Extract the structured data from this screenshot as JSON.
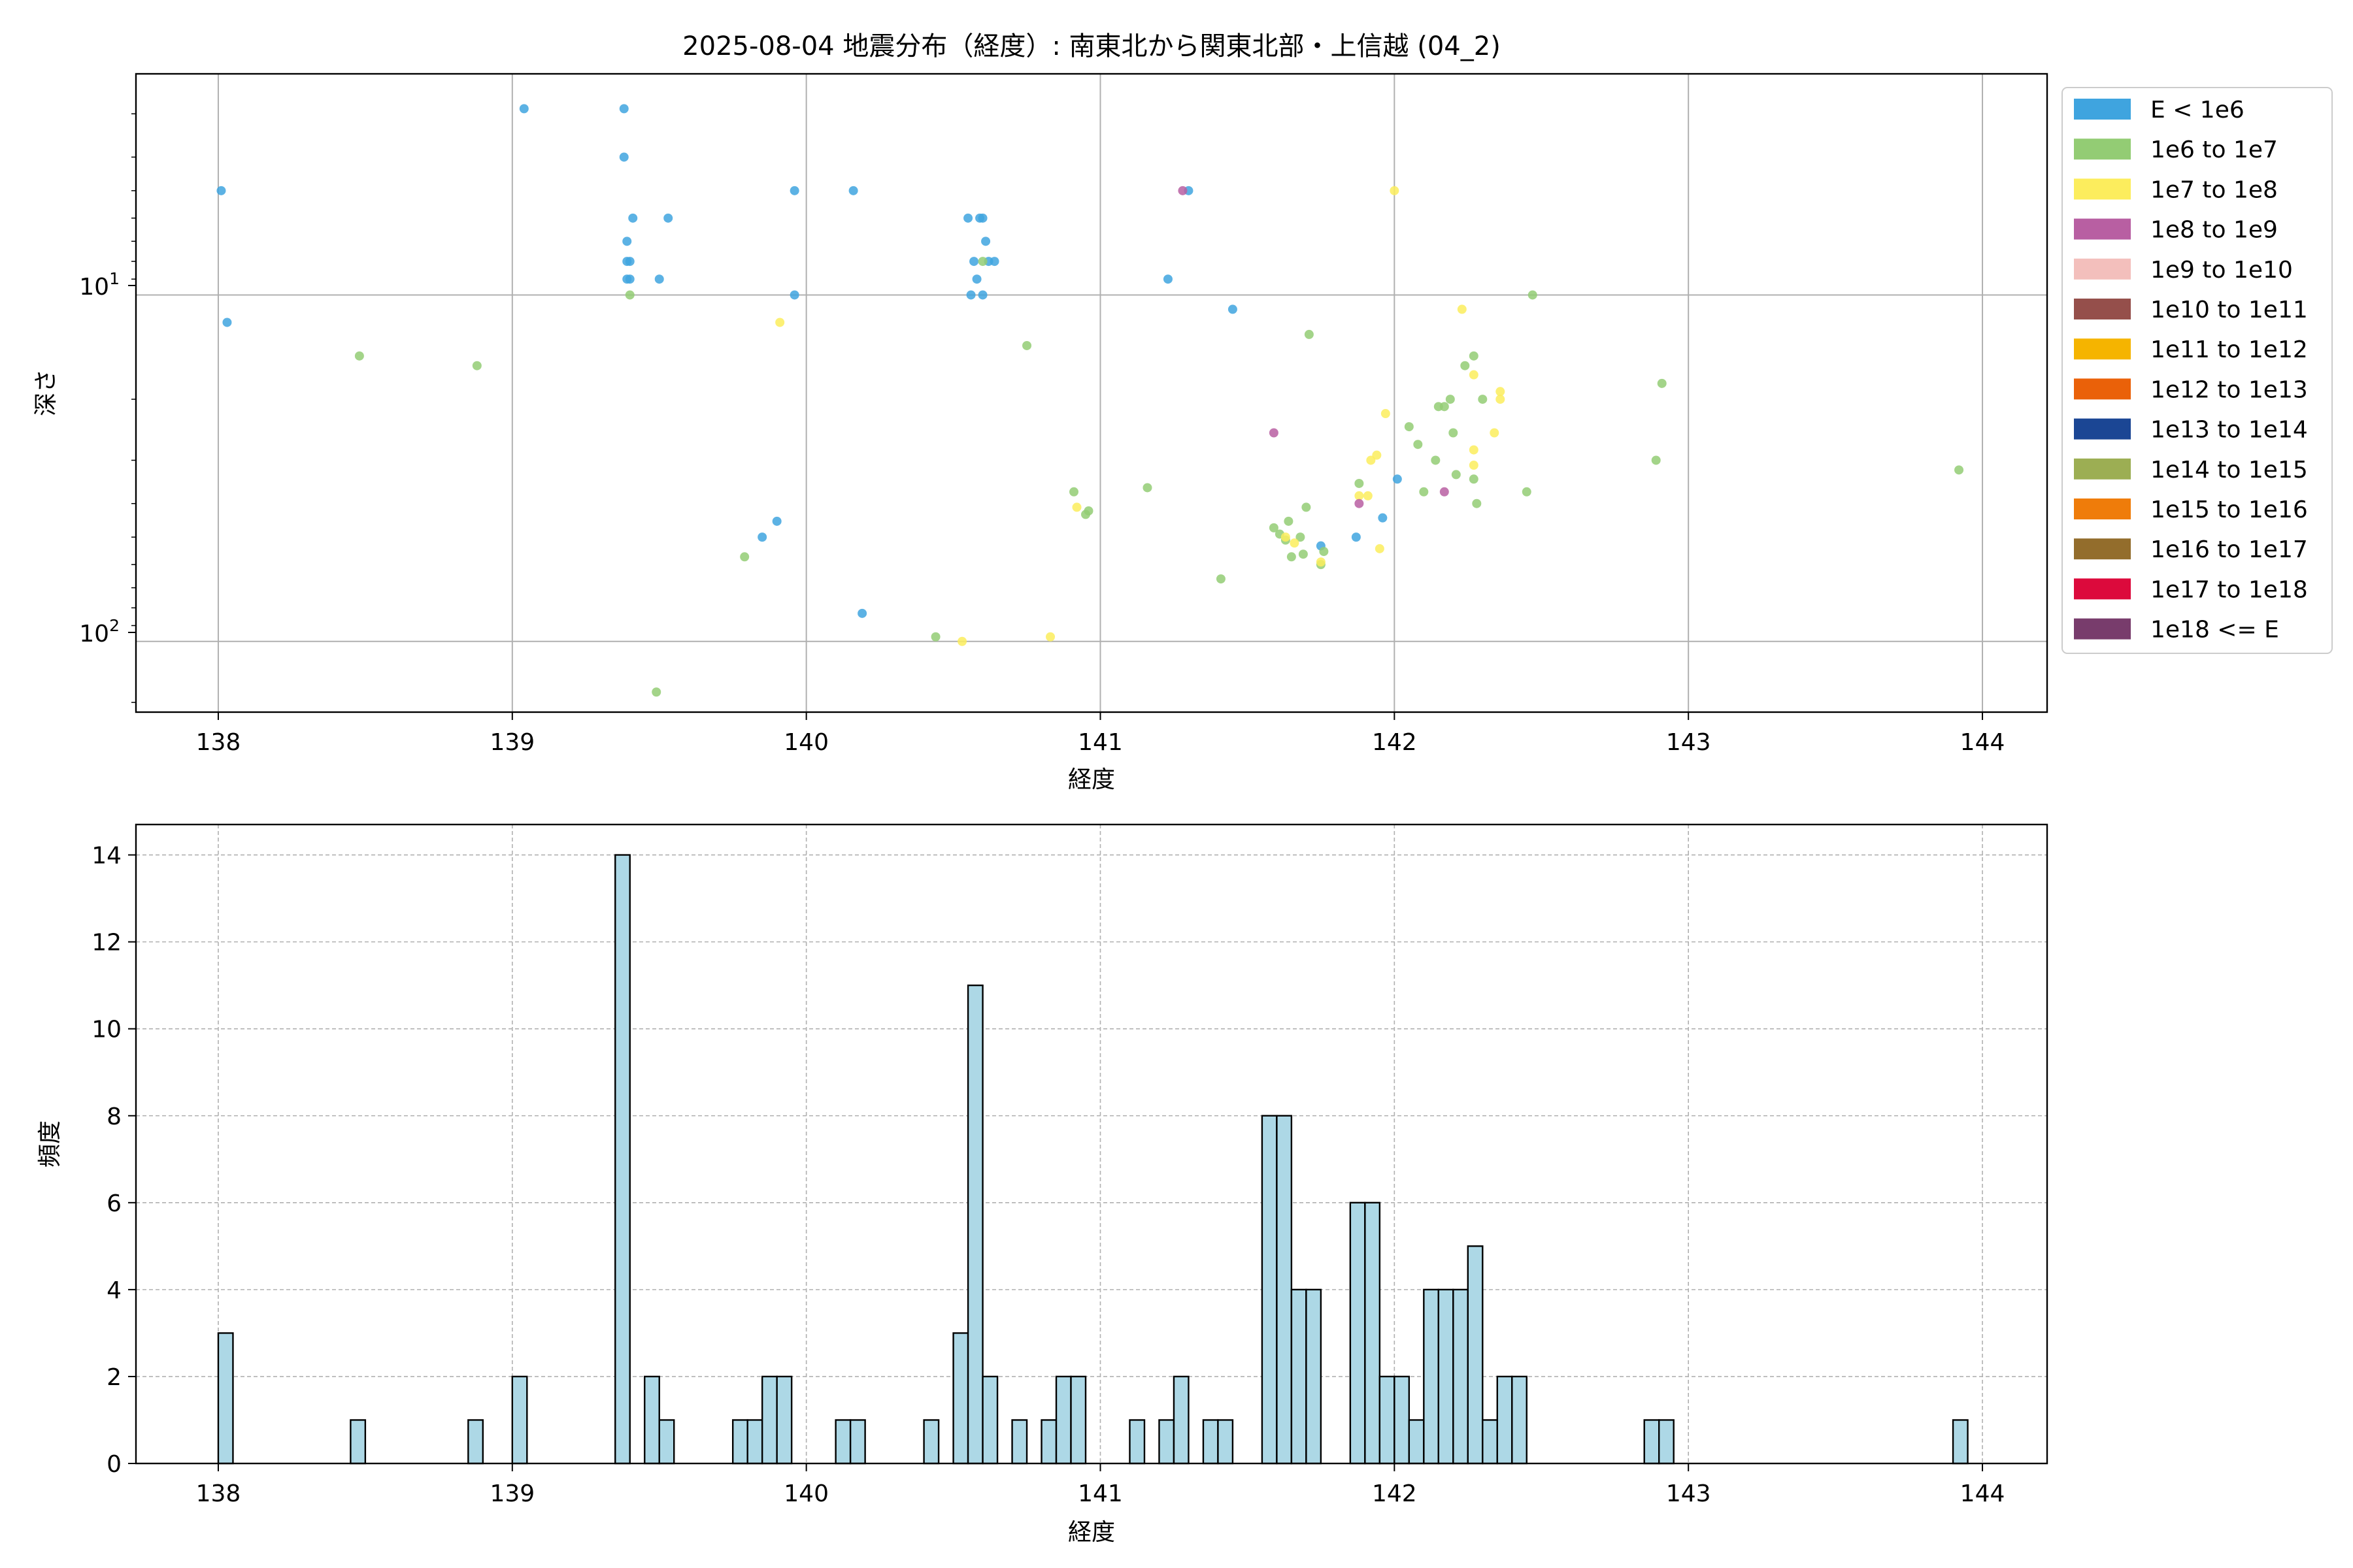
{
  "figure_title": "2025-08-04 地震分布（経度）: 南東北から関東北部・上信越 (04_2)",
  "scatter": {
    "xlabel": "経度",
    "ylabel": "深さ",
    "xticks": [
      "138",
      "139",
      "140",
      "141",
      "142",
      "143",
      "144"
    ],
    "ytick_10": "10",
    "ytick_10_exp": "1",
    "ytick_100": "10",
    "ytick_100_exp": "2"
  },
  "hist": {
    "xlabel": "経度",
    "ylabel": "頻度",
    "xticks": [
      "138",
      "139",
      "140",
      "141",
      "142",
      "143",
      "144"
    ],
    "yticks": [
      "0",
      "2",
      "4",
      "6",
      "8",
      "10",
      "12",
      "14"
    ]
  },
  "legend": [
    {
      "label": "E < 1e6",
      "color": "#3fa4df"
    },
    {
      "label": "1e6 to 1e7",
      "color": "#93cc74"
    },
    {
      "label": "1e7 to 1e8",
      "color": "#fced5d"
    },
    {
      "label": "1e8 to 1e9",
      "color": "#b85fa2"
    },
    {
      "label": "1e9 to 1e10",
      "color": "#f3bfbc"
    },
    {
      "label": "1e10 to 1e11",
      "color": "#954f4b"
    },
    {
      "label": "1e11 to 1e12",
      "color": "#f5b400"
    },
    {
      "label": "1e12 to 1e13",
      "color": "#ea6109"
    },
    {
      "label": "1e13 to 1e14",
      "color": "#1b4694"
    },
    {
      "label": "1e14 to 1e15",
      "color": "#9cae53"
    },
    {
      "label": "1e15 to 1e16",
      "color": "#ef7c0a"
    },
    {
      "label": "1e16 to 1e17",
      "color": "#936d2c"
    },
    {
      "label": "1e17 to 1e18",
      "color": "#dc0a3c"
    },
    {
      "label": "1e18 <= E",
      "color": "#783c6c"
    }
  ],
  "chart_data": [
    {
      "type": "scatter",
      "title": "2025-08-04 地震分布（経度）: 南東北から関東北部・上信越 (04_2)",
      "xlabel": "経度",
      "ylabel": "深さ",
      "xlim": [
        137.72,
        144.22
      ],
      "ylim": [
        160,
        2.3
      ],
      "y_scale": "log",
      "y_inverted": true,
      "grid": true,
      "legend_placement": "outside-right",
      "series": [
        {
          "name": "E < 1e6",
          "color": "#3fa4df",
          "points": [
            [
              138.01,
              5
            ],
            [
              138.03,
              12
            ],
            [
              139.04,
              2.9
            ],
            [
              139.38,
              2.9
            ],
            [
              139.38,
              4
            ],
            [
              139.41,
              6
            ],
            [
              139.53,
              6
            ],
            [
              139.39,
              7
            ],
            [
              139.39,
              8
            ],
            [
              139.4,
              8
            ],
            [
              139.39,
              9
            ],
            [
              139.4,
              9
            ],
            [
              139.5,
              9
            ],
            [
              139.96,
              5
            ],
            [
              139.96,
              10
            ],
            [
              140.16,
              5
            ],
            [
              139.9,
              45
            ],
            [
              139.85,
              50
            ],
            [
              140.19,
              83
            ],
            [
              140.55,
              6
            ],
            [
              140.59,
              6
            ],
            [
              140.6,
              6
            ],
            [
              140.61,
              7
            ],
            [
              140.57,
              8
            ],
            [
              140.62,
              8
            ],
            [
              140.64,
              8
            ],
            [
              140.58,
              9
            ],
            [
              140.6,
              10
            ],
            [
              140.56,
              10
            ],
            [
              141.23,
              9
            ],
            [
              141.3,
              5
            ],
            [
              141.45,
              11
            ],
            [
              141.75,
              53
            ],
            [
              141.87,
              50
            ],
            [
              141.96,
              44
            ],
            [
              142.01,
              34
            ]
          ]
        },
        {
          "name": "1e6 to 1e7",
          "color": "#93cc74",
          "points": [
            [
              138.48,
              15
            ],
            [
              138.88,
              16
            ],
            [
              139.4,
              10
            ],
            [
              139.79,
              57
            ],
            [
              140.44,
              97
            ],
            [
              140.6,
              8
            ],
            [
              140.75,
              14
            ],
            [
              140.91,
              37
            ],
            [
              140.95,
              43
            ],
            [
              140.96,
              42
            ],
            [
              141.16,
              36
            ],
            [
              141.41,
              66
            ],
            [
              141.59,
              47
            ],
            [
              141.61,
              49
            ],
            [
              141.63,
              51
            ],
            [
              141.64,
              45
            ],
            [
              141.65,
              57
            ],
            [
              141.68,
              50
            ],
            [
              141.69,
              56
            ],
            [
              141.7,
              41
            ],
            [
              141.71,
              13
            ],
            [
              141.75,
              60
            ],
            [
              141.76,
              55
            ],
            [
              141.88,
              35
            ],
            [
              142.05,
              24
            ],
            [
              142.08,
              27
            ],
            [
              142.1,
              37
            ],
            [
              142.14,
              30
            ],
            [
              142.15,
              21
            ],
            [
              142.17,
              21
            ],
            [
              142.19,
              20
            ],
            [
              142.2,
              25
            ],
            [
              142.21,
              33
            ],
            [
              142.24,
              16
            ],
            [
              142.27,
              15
            ],
            [
              142.27,
              34
            ],
            [
              142.28,
              40
            ],
            [
              142.3,
              20
            ],
            [
              142.45,
              37
            ],
            [
              142.47,
              10
            ],
            [
              142.89,
              30
            ],
            [
              142.91,
              18
            ],
            [
              143.92,
              32
            ],
            [
              139.49,
              140
            ]
          ]
        },
        {
          "name": "1e7 to 1e8",
          "color": "#fced5d",
          "points": [
            [
              139.91,
              12
            ],
            [
              140.53,
              100
            ],
            [
              140.83,
              97
            ],
            [
              140.92,
              41
            ],
            [
              141.63,
              50
            ],
            [
              141.66,
              52
            ],
            [
              141.75,
              59
            ],
            [
              141.88,
              38
            ],
            [
              141.91,
              38
            ],
            [
              141.92,
              30
            ],
            [
              141.94,
              29
            ],
            [
              141.95,
              54
            ],
            [
              141.97,
              22
            ],
            [
              142.0,
              5
            ],
            [
              142.23,
              11
            ],
            [
              142.27,
              17
            ],
            [
              142.27,
              28
            ],
            [
              142.27,
              31
            ],
            [
              142.34,
              25
            ],
            [
              142.36,
              19
            ],
            [
              142.36,
              20
            ]
          ]
        },
        {
          "name": "1e8 to 1e9",
          "color": "#b85fa2",
          "points": [
            [
              141.28,
              5
            ],
            [
              141.59,
              25
            ],
            [
              141.88,
              40
            ],
            [
              142.17,
              37
            ]
          ]
        }
      ]
    },
    {
      "type": "bar",
      "title": "",
      "xlabel": "経度",
      "ylabel": "頻度",
      "xlim": [
        137.72,
        144.22
      ],
      "ylim": [
        0,
        14.7
      ],
      "grid": true,
      "bin_width": 0.05,
      "bin_starts": [
        138.0,
        138.45,
        138.85,
        139.0,
        139.35,
        139.45,
        139.5,
        139.75,
        139.8,
        139.85,
        139.9,
        140.1,
        140.15,
        140.4,
        140.5,
        140.55,
        140.6,
        140.7,
        140.8,
        140.85,
        140.9,
        141.1,
        141.2,
        141.25,
        141.35,
        141.4,
        141.55,
        141.6,
        141.65,
        141.7,
        141.85,
        141.9,
        141.95,
        142.0,
        142.05,
        142.1,
        142.15,
        142.2,
        142.25,
        142.3,
        142.35,
        142.4,
        142.85,
        142.9,
        143.9
      ],
      "values": [
        3,
        1,
        1,
        2,
        14,
        2,
        1,
        1,
        1,
        2,
        2,
        1,
        1,
        1,
        3,
        11,
        2,
        1,
        1,
        2,
        2,
        1,
        1,
        2,
        1,
        1,
        8,
        8,
        4,
        4,
        6,
        6,
        2,
        2,
        1,
        4,
        4,
        4,
        5,
        1,
        2,
        2,
        1,
        1,
        1
      ],
      "color": "#add8e6"
    }
  ]
}
